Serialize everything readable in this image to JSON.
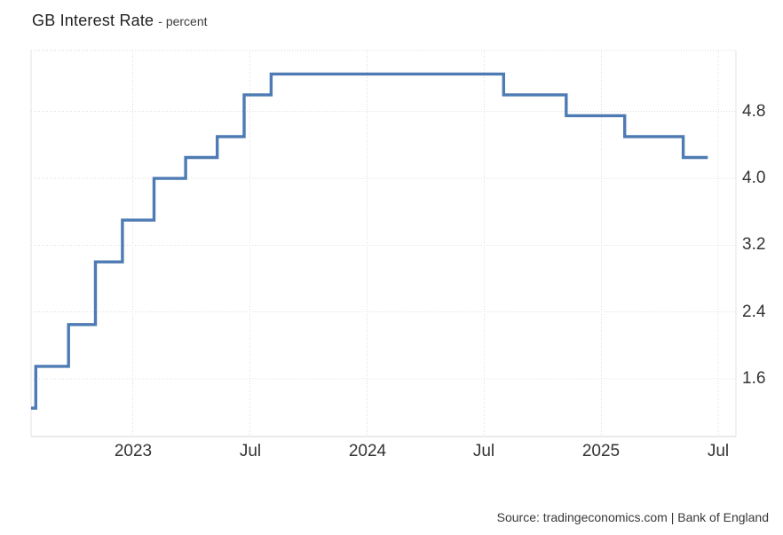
{
  "header": {
    "title": "GB Interest Rate",
    "subtitle": "- percent"
  },
  "footer": {
    "source": "Source: tradingeconomics.com | Bank of England"
  },
  "chart_data": {
    "type": "line",
    "step": true,
    "title": "GB Interest Rate",
    "unit": "percent",
    "source": "tradingeconomics.com | Bank of England",
    "legend_position": "none",
    "grid": true,
    "line_color": "#4e7bb4",
    "grid_color": "#dcdcdc",
    "axis_border_color": "#e3e3e3",
    "tick_text_color": "#333333",
    "xlim_decimal_years": [
      2022.565,
      2025.575
    ],
    "ylim": [
      0.91,
      5.53
    ],
    "x_ticks": [
      {
        "value": 2023.0,
        "label": "2023"
      },
      {
        "value": 2023.5,
        "label": "Jul"
      },
      {
        "value": 2024.0,
        "label": "2024"
      },
      {
        "value": 2024.5,
        "label": "Jul"
      },
      {
        "value": 2025.0,
        "label": "2025"
      },
      {
        "value": 2025.5,
        "label": "Jul"
      }
    ],
    "y_ticks": [
      {
        "value": 4.8,
        "label": "4.8"
      },
      {
        "value": 4.0,
        "label": "4.0"
      },
      {
        "value": 3.2,
        "label": "3.2"
      },
      {
        "value": 2.4,
        "label": "2.4"
      },
      {
        "value": 1.6,
        "label": "1.6"
      }
    ],
    "initial_level": {
      "date": "2022-07",
      "rate": 1.25
    },
    "rate_changes": [
      {
        "date": "2022-08",
        "rate": 1.75
      },
      {
        "date": "2022-09",
        "rate": 2.25
      },
      {
        "date": "2022-11",
        "rate": 3.0
      },
      {
        "date": "2022-12",
        "rate": 3.5
      },
      {
        "date": "2023-02",
        "rate": 4.0
      },
      {
        "date": "2023-03",
        "rate": 4.25
      },
      {
        "date": "2023-05",
        "rate": 4.5
      },
      {
        "date": "2023-06",
        "rate": 5.0
      },
      {
        "date": "2023-08",
        "rate": 5.25
      },
      {
        "date": "2024-08",
        "rate": 5.0
      },
      {
        "date": "2024-11",
        "rate": 4.75
      },
      {
        "date": "2025-02",
        "rate": 4.5
      },
      {
        "date": "2025-05",
        "rate": 4.25
      }
    ],
    "series": [
      {
        "name": "GB Interest Rate",
        "points": [
          [
            2022.565,
            1.25
          ],
          [
            2022.585,
            1.75
          ],
          [
            2022.725,
            2.25
          ],
          [
            2022.84,
            3.0
          ],
          [
            2022.955,
            3.5
          ],
          [
            2023.09,
            4.0
          ],
          [
            2023.225,
            4.25
          ],
          [
            2023.36,
            4.5
          ],
          [
            2023.475,
            5.0
          ],
          [
            2023.59,
            5.25
          ],
          [
            2024.583,
            5.0
          ],
          [
            2024.85,
            4.75
          ],
          [
            2025.1,
            4.5
          ],
          [
            2025.35,
            4.25
          ],
          [
            2025.455,
            4.25
          ]
        ]
      }
    ]
  }
}
